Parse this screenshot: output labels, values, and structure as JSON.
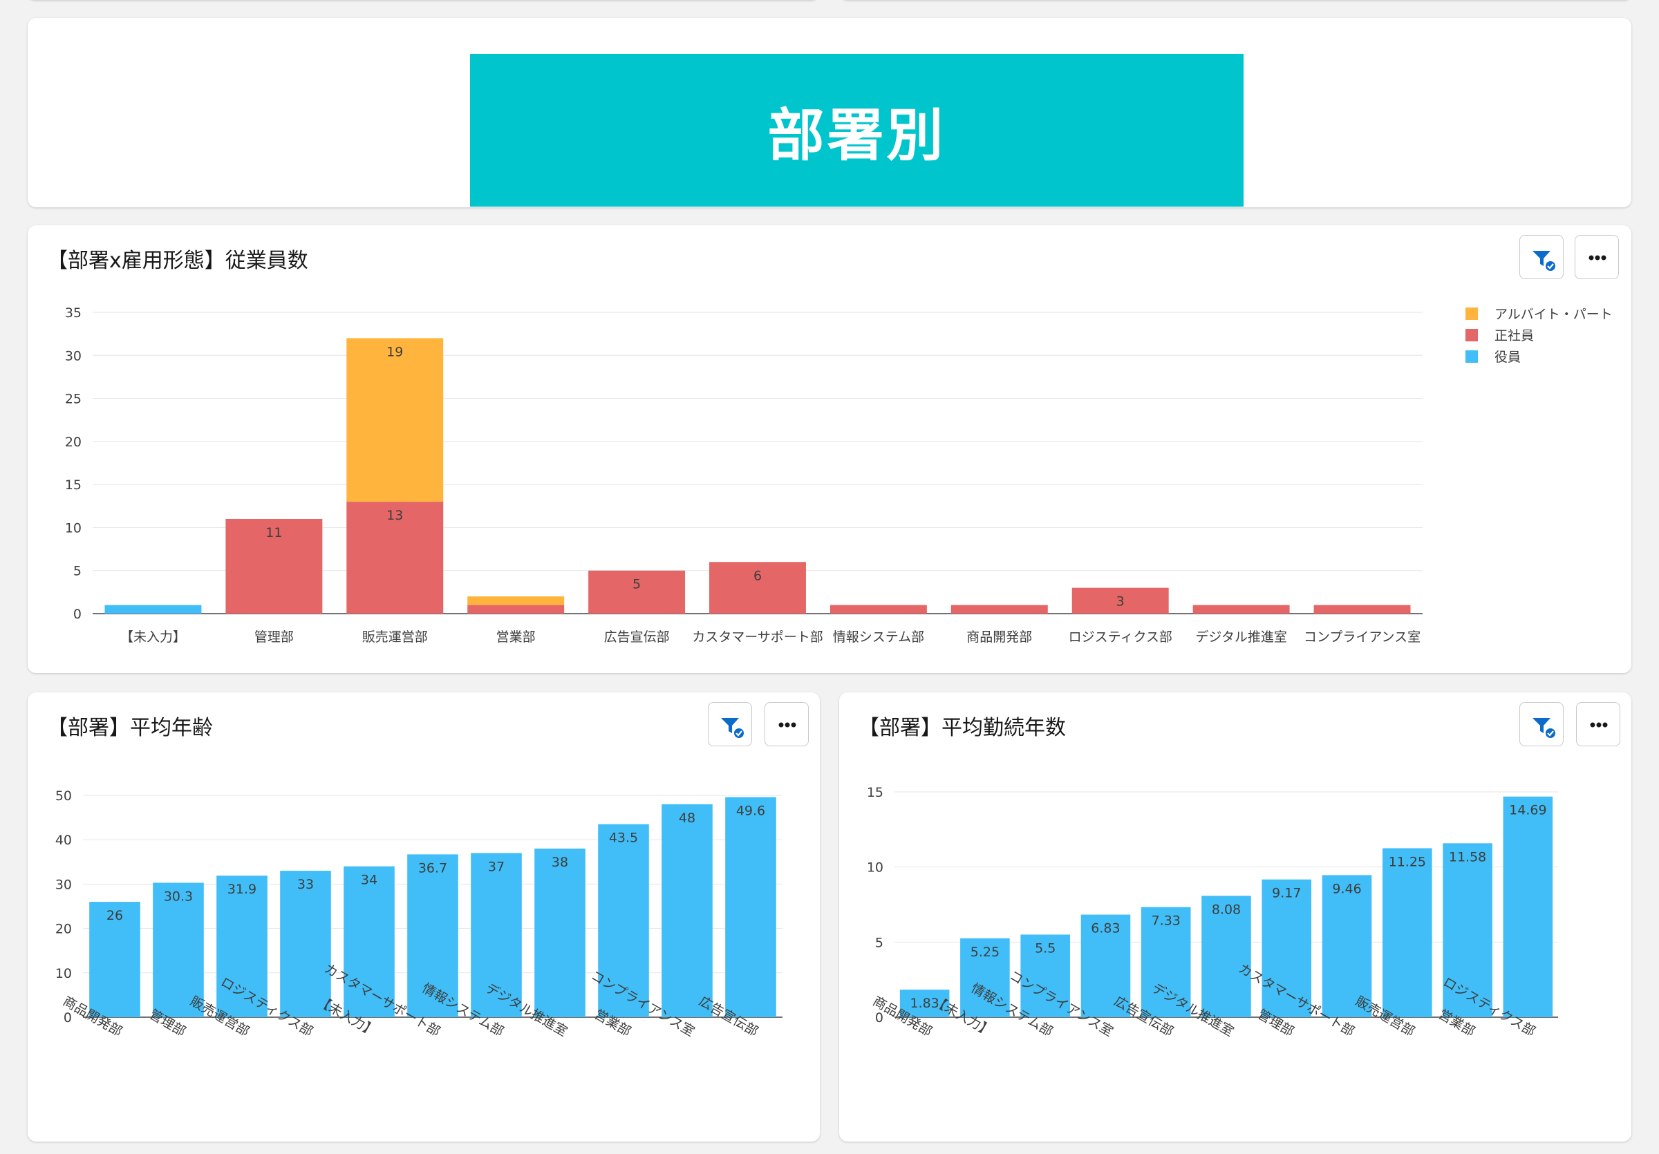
{
  "banner": {
    "title": "部署別"
  },
  "charts": [
    {
      "id": "employees",
      "title": "【部署x雇用形態】従業員数",
      "type": "bar",
      "stacked": true,
      "categories": [
        "【未入力】",
        "管理部",
        "販売運営部",
        "営業部",
        "広告宣伝部",
        "カスタマーサポート部",
        "情報システム部",
        "商品開発部",
        "ロジスティクス部",
        "デジタル推進室",
        "コンプライアンス室"
      ],
      "series": [
        {
          "name": "役員",
          "color": "#41bdf8",
          "values": [
            1,
            0,
            0,
            0,
            0,
            0,
            0,
            0,
            0,
            0,
            0
          ]
        },
        {
          "name": "正社員",
          "color": "#e46667",
          "values": [
            0,
            11,
            13,
            1,
            5,
            6,
            1,
            1,
            3,
            1,
            1
          ]
        },
        {
          "name": "アルバイト・パート",
          "color": "#ffb43e",
          "values": [
            0,
            0,
            19,
            1,
            0,
            0,
            0,
            0,
            0,
            0,
            0
          ]
        }
      ],
      "ylim": [
        0,
        35
      ],
      "yticks": [
        0,
        5,
        10,
        15,
        20,
        25,
        30,
        35
      ],
      "legend_position": "top-right",
      "grid": true
    },
    {
      "id": "age",
      "title": "【部署】平均年齢",
      "type": "bar",
      "categories": [
        "商品開発部",
        "管理部",
        "販売運営部",
        "ロジスティクス部",
        "【未入力】",
        "カスタマーサポート部",
        "情報システム部",
        "デジタル推進室",
        "営業部",
        "コンプライアンス室",
        "広告宣伝部"
      ],
      "series": [
        {
          "color": "#41bdf8",
          "values": [
            26,
            30.3,
            31.9,
            33,
            34,
            36.7,
            37,
            38,
            43.5,
            48,
            49.6
          ]
        }
      ],
      "ylim": [
        0,
        50
      ],
      "yticks": [
        0,
        10,
        20,
        30,
        40,
        50
      ],
      "grid": true
    },
    {
      "id": "tenure",
      "title": "【部署】平均勤続年数",
      "type": "bar",
      "categories": [
        "商品開発部",
        "【未入力】",
        "情報システム部",
        "コンプライアンス室",
        "広告宣伝部",
        "デジタル推進室",
        "管理部",
        "カスタマーサポート部",
        "販売運営部",
        "営業部",
        "ロジスティクス部"
      ],
      "series": [
        {
          "color": "#41bdf8",
          "values": [
            1.83,
            5.25,
            5.5,
            6.83,
            7.33,
            8.08,
            9.17,
            9.46,
            11.25,
            11.58,
            14.69
          ]
        }
      ],
      "ylim": [
        0,
        15
      ],
      "yticks": [
        0,
        5,
        10,
        15
      ],
      "grid": true
    }
  ],
  "icons": {
    "filter": "filter-check-icon",
    "more": "more-options-icon"
  }
}
